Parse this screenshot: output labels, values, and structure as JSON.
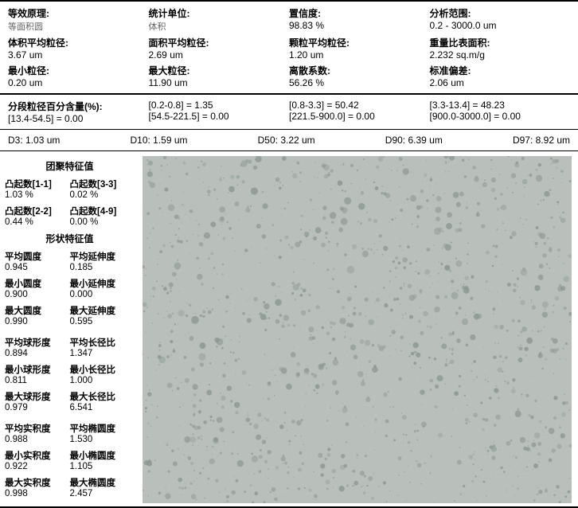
{
  "top": {
    "r1": {
      "c1": {
        "label": "等效原理:",
        "sub": "等面积圆"
      },
      "c2": {
        "label": "统计单位:",
        "sub": "体积"
      },
      "c3": {
        "label": "置信度:",
        "val": "98.83 %"
      },
      "c4": {
        "label": "分析范围:",
        "val": "0.2 - 3000.0 um"
      }
    },
    "r2": {
      "c1": {
        "label": "体积平均粒径:",
        "val": "3.67  um"
      },
      "c2": {
        "label": "面积平均粒径:",
        "val": "2.69  um"
      },
      "c3": {
        "label": "颗粒平均粒径:",
        "val": "1.20  um"
      },
      "c4": {
        "label": "重量比表面积:",
        "val": "2.232  sq.m/g"
      }
    },
    "r3": {
      "c1": {
        "label": "最小粒径:",
        "val": "0.20  um"
      },
      "c2": {
        "label": "最大粒径:",
        "val": "11.90  um"
      },
      "c3": {
        "label": "离散系数:",
        "val": "56.26 %"
      },
      "c4": {
        "label": "标准偏差:",
        "val": "2.06  um"
      }
    }
  },
  "seg": {
    "title": "分段粒径百分含量(%):",
    "c1b": "[13.4-54.5] = 0.00",
    "c2a": "[0.2-0.8] = 1.35",
    "c2b": "[54.5-221.5] = 0.00",
    "c3a": "[0.8-3.3] = 50.42",
    "c3b": "[221.5-900.0] = 0.00",
    "c4a": "[3.3-13.4] = 48.23",
    "c4b": "[900.0-3000.0] = 0.00"
  },
  "d": {
    "d3": "D3: 1.03  um",
    "d10": "D10: 1.59  um",
    "d50": "D50: 3.22  um",
    "d90": "D90: 6.39  um",
    "d97": "D97: 8.92  um"
  },
  "agg": {
    "title": "团聚特征值",
    "r1a": {
      "lb": "凸起数[1-1]",
      "vl": "1.03 %"
    },
    "r1b": {
      "lb": "凸起数[3-3]",
      "vl": "0.02 %"
    },
    "r2a": {
      "lb": "凸起数[2-2]",
      "vl": "0.44 %"
    },
    "r2b": {
      "lb": "凸起数[4-9]",
      "vl": "0.00 %"
    }
  },
  "shape": {
    "title": "形状特征值",
    "g1": {
      "a1": {
        "lb": "平均圆度",
        "vl": "0.945"
      },
      "b1": {
        "lb": "平均延伸度",
        "vl": "0.185"
      },
      "a2": {
        "lb": "最小圆度",
        "vl": "0.900"
      },
      "b2": {
        "lb": "最小延伸度",
        "vl": "0.000"
      },
      "a3": {
        "lb": "最大圆度",
        "vl": "0.990"
      },
      "b3": {
        "lb": "最大延伸度",
        "vl": "0.595"
      }
    },
    "g2": {
      "a1": {
        "lb": "平均球形度",
        "vl": "0.894"
      },
      "b1": {
        "lb": "平均长径比",
        "vl": "1.347"
      },
      "a2": {
        "lb": "最小球形度",
        "vl": "0.811"
      },
      "b2": {
        "lb": "最小长径比",
        "vl": "1.000"
      },
      "a3": {
        "lb": "最大球形度",
        "vl": "0.979"
      },
      "b3": {
        "lb": "最大长径比",
        "vl": "6.541"
      }
    },
    "g3": {
      "a1": {
        "lb": "平均实积度",
        "vl": "0.988"
      },
      "b1": {
        "lb": "平均椭圆度",
        "vl": "1.530"
      },
      "a2": {
        "lb": "最小实积度",
        "vl": "0.922"
      },
      "b2": {
        "lb": "最小椭圆度",
        "vl": "1.105"
      },
      "a3": {
        "lb": "最大实积度",
        "vl": "0.998"
      },
      "b3": {
        "lb": "最大椭圆度",
        "vl": "2.457"
      }
    }
  },
  "colors": {
    "imgBg": "#b9c0bb",
    "particle": "#8a9790"
  }
}
